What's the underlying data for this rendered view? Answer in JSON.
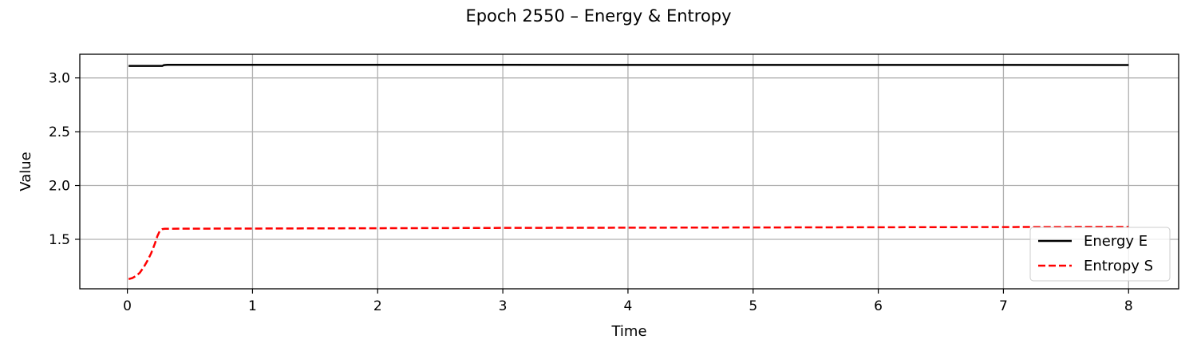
{
  "chart_data": {
    "type": "line",
    "title": "Epoch 2550 – Energy & Entropy",
    "xlabel": "Time",
    "ylabel": "Value",
    "xlim": [
      -0.38,
      8.4
    ],
    "ylim": [
      1.04,
      3.22
    ],
    "xticks": [
      0,
      1,
      2,
      3,
      4,
      5,
      6,
      7,
      8
    ],
    "yticks": [
      1.5,
      2.0,
      2.5,
      3.0
    ],
    "xtick_labels": [
      "0",
      "1",
      "2",
      "3",
      "4",
      "5",
      "6",
      "7",
      "8"
    ],
    "ytick_labels": [
      "1.5",
      "2.0",
      "2.5",
      "3.0"
    ],
    "grid": true,
    "legend_position": "lower right",
    "series": [
      {
        "name": "Energy E",
        "color": "#000000",
        "style": "solid",
        "x": [
          0.01,
          0.1,
          0.2,
          0.28,
          0.29,
          0.3,
          0.32,
          1,
          2,
          3,
          4,
          5,
          6,
          7,
          8
        ],
        "y": [
          3.112,
          3.112,
          3.112,
          3.112,
          3.118,
          3.12,
          3.122,
          3.122,
          3.122,
          3.122,
          3.121,
          3.121,
          3.121,
          3.121,
          3.12
        ]
      },
      {
        "name": "Entropy S",
        "color": "#ff0000",
        "style": "dashed",
        "x": [
          0.01,
          0.04,
          0.07,
          0.1,
          0.13,
          0.16,
          0.19,
          0.22,
          0.24,
          0.26,
          0.28,
          0.3,
          0.5,
          1,
          2,
          3,
          4,
          5,
          6,
          7,
          8
        ],
        "y": [
          1.13,
          1.14,
          1.16,
          1.19,
          1.24,
          1.3,
          1.37,
          1.46,
          1.53,
          1.58,
          1.595,
          1.598,
          1.599,
          1.6,
          1.603,
          1.606,
          1.608,
          1.61,
          1.612,
          1.614,
          1.616
        ]
      }
    ]
  }
}
